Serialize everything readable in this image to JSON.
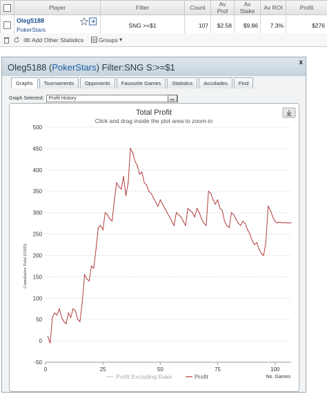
{
  "table": {
    "headers": [
      "Player",
      "Filter",
      "Count",
      "Av Prof",
      "Av Stake",
      "Av ROI",
      "Profit"
    ],
    "row": {
      "player_name": "Oleg5188",
      "site": "PokerStars",
      "filter": "SNG >=$1",
      "count": "107",
      "av_prof": "$2.58",
      "av_stake": "$9.86",
      "av_roi": "7.3%",
      "profit": "$276"
    }
  },
  "toolbar": {
    "add_other_statistics": "Add Other Statistics",
    "groups": "Groups"
  },
  "popup": {
    "title_player": "Oleg5188 (",
    "title_site": "PokerStars",
    "title_filter": ") Filter:SNG S:>=$1",
    "close": "x",
    "tabs": [
      "Graphs",
      "Tournaments",
      "Opponents",
      "Favourite Games",
      "Statistics",
      "Accolades",
      "Find"
    ],
    "active_tab": "Graphs",
    "graph_selected_label": "Graph Selected:",
    "graph_selected_value": "Profit History"
  },
  "chart_data": {
    "type": "line",
    "title": "Total Profit",
    "subtitle": "Click and drag inside the plot area to zoom-in",
    "ylabel": "Cumulative Total (USD)",
    "xlabel": "No. Games",
    "ylim": [
      -50,
      500
    ],
    "xlim": [
      0,
      107
    ],
    "yticks": [
      -50,
      0,
      50,
      100,
      150,
      200,
      250,
      300,
      350,
      400,
      450,
      500
    ],
    "xticks": [
      0,
      25,
      50,
      75,
      100
    ],
    "grid": "horizontal",
    "legend_position": "bottom",
    "series": [
      {
        "name": "Profit Excluding Rake",
        "color": "#c8c8c8",
        "values": []
      },
      {
        "name": "Profit",
        "color": "#b03a3a",
        "x": [
          1,
          2,
          3,
          4,
          5,
          6,
          7,
          8,
          9,
          10,
          11,
          12,
          13,
          14,
          15,
          16,
          17,
          18,
          19,
          20,
          21,
          22,
          23,
          24,
          25,
          26,
          27,
          28,
          29,
          30,
          31,
          32,
          33,
          34,
          35,
          36,
          37,
          38,
          39,
          40,
          41,
          42,
          43,
          44,
          45,
          46,
          47,
          48,
          49,
          50,
          51,
          52,
          53,
          54,
          55,
          56,
          57,
          58,
          59,
          60,
          61,
          62,
          63,
          64,
          65,
          66,
          67,
          68,
          69,
          70,
          71,
          72,
          73,
          74,
          75,
          76,
          77,
          78,
          79,
          80,
          81,
          82,
          83,
          84,
          85,
          86,
          87,
          88,
          89,
          90,
          91,
          92,
          93,
          94,
          95,
          96,
          97,
          98,
          99,
          100,
          101,
          102,
          103,
          104,
          105,
          106,
          107
        ],
        "values": [
          10,
          -5,
          55,
          65,
          60,
          75,
          55,
          45,
          40,
          65,
          55,
          75,
          70,
          50,
          45,
          90,
          155,
          145,
          140,
          175,
          170,
          215,
          265,
          270,
          260,
          300,
          295,
          285,
          280,
          330,
          370,
          360,
          355,
          385,
          340,
          370,
          450,
          440,
          420,
          410,
          390,
          395,
          370,
          365,
          350,
          345,
          335,
          325,
          315,
          330,
          320,
          310,
          300,
          290,
          280,
          270,
          300,
          295,
          290,
          280,
          270,
          310,
          305,
          300,
          290,
          310,
          300,
          285,
          275,
          270,
          350,
          345,
          330,
          320,
          330,
          310,
          305,
          280,
          270,
          265,
          300,
          295,
          285,
          275,
          270,
          280,
          275,
          260,
          250,
          235,
          225,
          230,
          215,
          205,
          200,
          230,
          315,
          305,
          290,
          280,
          276,
          278,
          276,
          277,
          276,
          276,
          276
        ]
      }
    ]
  },
  "download_icon": "download-icon",
  "colors": {
    "profit_line": "#b03a3a",
    "excluding_rake_line": "#c8c8c8",
    "header_bg": "#c7d3dc",
    "link_blue": "#1d4f91"
  }
}
